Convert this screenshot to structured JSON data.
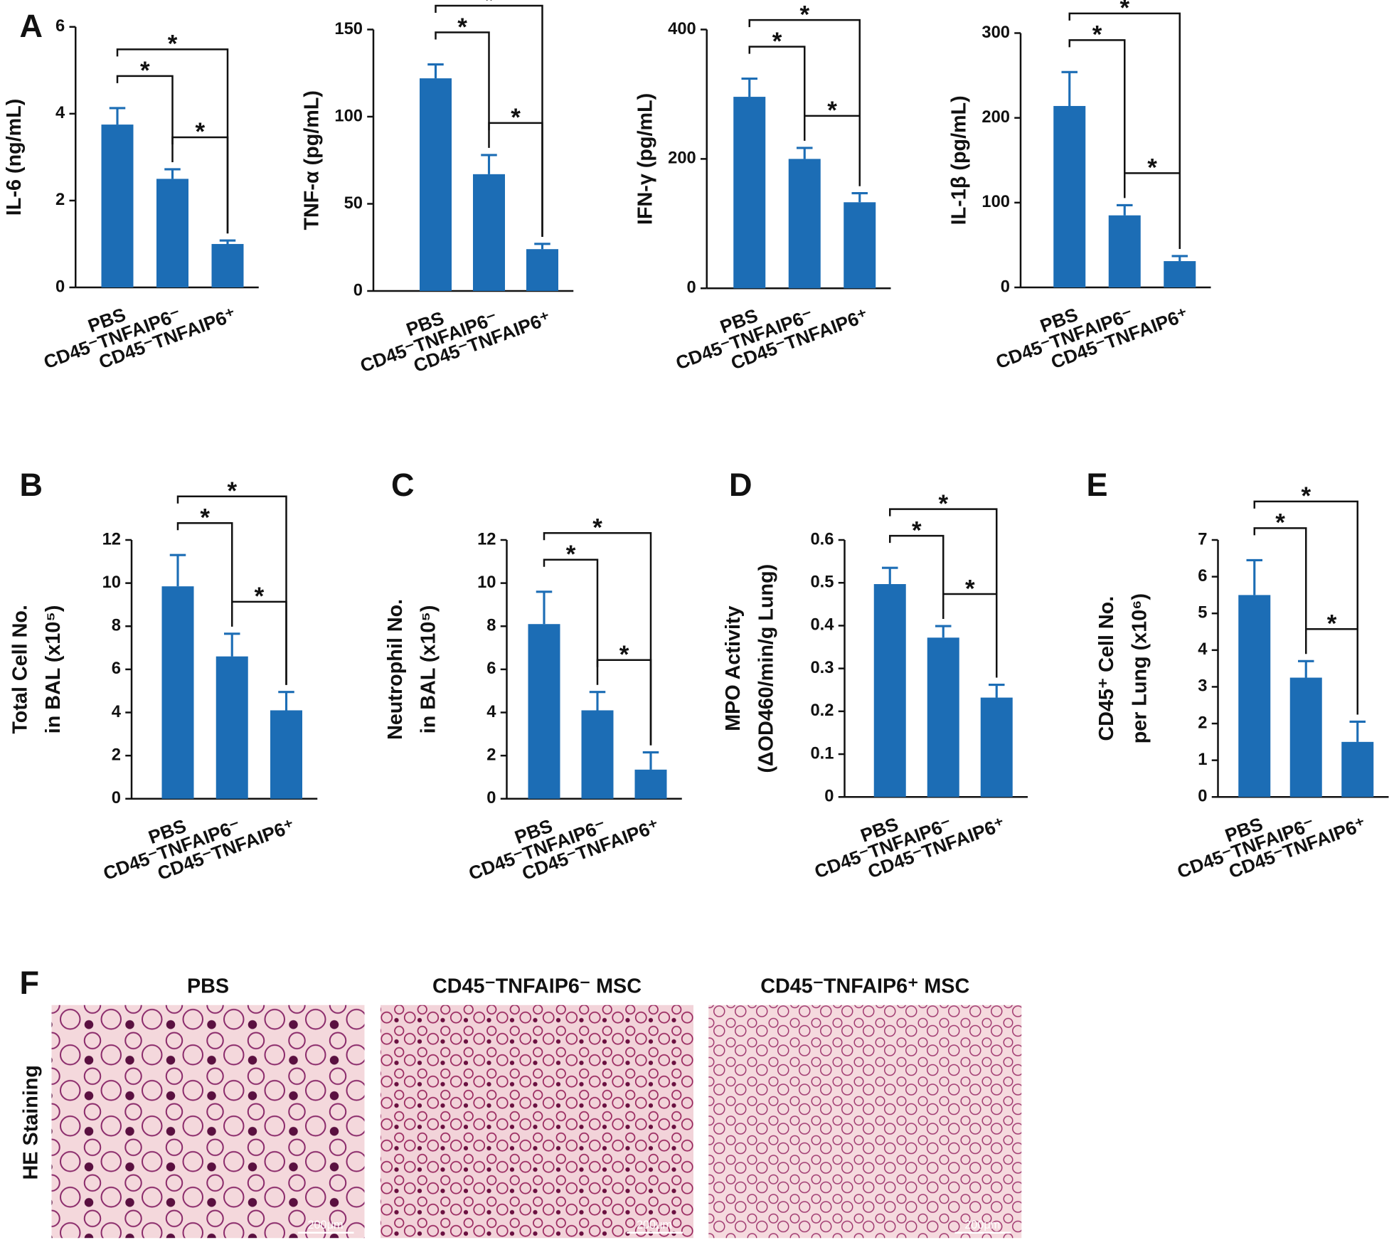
{
  "chart_data": [
    {
      "type": "bar",
      "panel": "A",
      "ylabel": [
        "IL-6 (ng/mL)"
      ],
      "categories": [
        "PBS",
        "CD45⁻TNFAIP6⁻",
        "CD45⁻TNFAIP6⁺"
      ],
      "values": [
        3.75,
        2.5,
        1.0
      ],
      "errors": [
        0.38,
        0.22,
        0.08
      ],
      "color": "#1c6db5",
      "ylim": [
        0,
        6
      ],
      "yticks": [
        0,
        2,
        4,
        6
      ],
      "brackets": [
        {
          "from": "PBS",
          "to": "CD45⁻TNFAIP6⁻",
          "label": "*"
        },
        {
          "from": "CD45⁻TNFAIP6⁻",
          "to": "CD45⁻TNFAIP6⁺",
          "label": "*"
        },
        {
          "from": "PBS",
          "to": "CD45⁻TNFAIP6⁺",
          "label": "*"
        }
      ]
    },
    {
      "type": "bar",
      "ylabel": [
        "TNF-α (pg/mL)"
      ],
      "categories": [
        "PBS",
        "CD45⁻TNFAIP6⁻",
        "CD45⁻TNFAIP6⁺"
      ],
      "values": [
        122,
        67,
        24
      ],
      "errors": [
        8,
        11,
        3
      ],
      "color": "#1c6db5",
      "ylim": [
        0,
        150
      ],
      "yticks": [
        0,
        50,
        100,
        150
      ],
      "brackets": [
        {
          "from": "PBS",
          "to": "CD45⁻TNFAIP6⁻",
          "label": "*"
        },
        {
          "from": "CD45⁻TNFAIP6⁻",
          "to": "CD45⁻TNFAIP6⁺",
          "label": "*"
        },
        {
          "from": "PBS",
          "to": "CD45⁻TNFAIP6⁺",
          "label": "*"
        }
      ]
    },
    {
      "type": "bar",
      "ylabel": [
        "IFN-γ (pg/mL)"
      ],
      "categories": [
        "PBS",
        "CD45⁻TNFAIP6⁻",
        "CD45⁻TNFAIP6⁺"
      ],
      "values": [
        296,
        200,
        133
      ],
      "errors": [
        28,
        17,
        14
      ],
      "color": "#1c6db5",
      "ylim": [
        0,
        400
      ],
      "yticks": [
        0,
        200,
        400
      ],
      "brackets": [
        {
          "from": "PBS",
          "to": "CD45⁻TNFAIP6⁻",
          "label": "*"
        },
        {
          "from": "CD45⁻TNFAIP6⁻",
          "to": "CD45⁻TNFAIP6⁺",
          "label": "*"
        },
        {
          "from": "PBS",
          "to": "CD45⁻TNFAIP6⁺",
          "label": "*"
        }
      ]
    },
    {
      "type": "bar",
      "ylabel": [
        "IL-1β (pg/mL)"
      ],
      "categories": [
        "PBS",
        "CD45⁻TNFAIP6⁻",
        "CD45⁻TNFAIP6⁺"
      ],
      "values": [
        214,
        85,
        31
      ],
      "errors": [
        40,
        12,
        6
      ],
      "color": "#1c6db5",
      "ylim": [
        0,
        300
      ],
      "yticks": [
        0,
        100,
        200,
        300
      ],
      "brackets": [
        {
          "from": "PBS",
          "to": "CD45⁻TNFAIP6⁻",
          "label": "*"
        },
        {
          "from": "CD45⁻TNFAIP6⁻",
          "to": "CD45⁻TNFAIP6⁺",
          "label": "*"
        },
        {
          "from": "PBS",
          "to": "CD45⁻TNFAIP6⁺",
          "label": "*"
        }
      ]
    },
    {
      "type": "bar",
      "panel": "B",
      "ylabel": [
        "Total Cell No.",
        "in BAL (x10⁵)"
      ],
      "categories": [
        "PBS",
        "CD45⁻TNFAIP6⁻",
        "CD45⁻TNFAIP6⁺"
      ],
      "values": [
        9.85,
        6.6,
        4.1
      ],
      "errors": [
        1.45,
        1.05,
        0.85
      ],
      "color": "#1c6db5",
      "ylim": [
        0,
        12
      ],
      "yticks": [
        0,
        2,
        4,
        6,
        8,
        10,
        12
      ],
      "brackets": [
        {
          "from": "PBS",
          "to": "CD45⁻TNFAIP6⁻",
          "label": "*"
        },
        {
          "from": "CD45⁻TNFAIP6⁻",
          "to": "CD45⁻TNFAIP6⁺",
          "label": "*"
        },
        {
          "from": "PBS",
          "to": "CD45⁻TNFAIP6⁺",
          "label": "*"
        }
      ]
    },
    {
      "type": "bar",
      "panel": "C",
      "ylabel": [
        "Neutrophil No.",
        "in BAL (x10⁵)"
      ],
      "categories": [
        "PBS",
        "CD45⁻TNFAIP6⁻",
        "CD45⁻TNFAIP6⁺"
      ],
      "values": [
        8.1,
        4.1,
        1.35
      ],
      "errors": [
        1.5,
        0.85,
        0.8
      ],
      "color": "#1c6db5",
      "ylim": [
        0,
        12
      ],
      "yticks": [
        0,
        2,
        4,
        6,
        8,
        10,
        12
      ],
      "brackets": [
        {
          "from": "PBS",
          "to": "CD45⁻TNFAIP6⁻",
          "label": "*"
        },
        {
          "from": "CD45⁻TNFAIP6⁻",
          "to": "CD45⁻TNFAIP6⁺",
          "label": "*"
        },
        {
          "from": "PBS",
          "to": "CD45⁻TNFAIP6⁺",
          "label": "*"
        }
      ]
    },
    {
      "type": "bar",
      "panel": "D",
      "ylabel": [
        "MPO Activity",
        "(ΔOD460/min/g Lung)"
      ],
      "categories": [
        "PBS",
        "CD45⁻TNFAIP6⁻",
        "CD45⁻TNFAIP6⁺"
      ],
      "values": [
        0.497,
        0.372,
        0.232
      ],
      "errors": [
        0.038,
        0.027,
        0.03
      ],
      "color": "#1c6db5",
      "ylim": [
        0,
        0.6
      ],
      "yticks": [
        0,
        0.1,
        0.2,
        0.3,
        0.4,
        0.5,
        0.6
      ],
      "brackets": [
        {
          "from": "PBS",
          "to": "CD45⁻TNFAIP6⁻",
          "label": "*"
        },
        {
          "from": "CD45⁻TNFAIP6⁻",
          "to": "CD45⁻TNFAIP6⁺",
          "label": "*"
        },
        {
          "from": "PBS",
          "to": "CD45⁻TNFAIP6⁺",
          "label": "*"
        }
      ]
    },
    {
      "type": "bar",
      "panel": "E",
      "ylabel": [
        "CD45⁺ Cell No.",
        "per Lung (x10⁶)"
      ],
      "categories": [
        "PBS",
        "CD45⁻TNFAIP6⁻",
        "CD45⁻TNFAIP6⁺"
      ],
      "values": [
        5.5,
        3.25,
        1.5
      ],
      "errors": [
        0.95,
        0.45,
        0.55
      ],
      "color": "#1c6db5",
      "ylim": [
        0,
        7
      ],
      "yticks": [
        0,
        1,
        2,
        3,
        4,
        5,
        6,
        7
      ],
      "brackets": [
        {
          "from": "PBS",
          "to": "CD45⁻TNFAIP6⁻",
          "label": "*"
        },
        {
          "from": "CD45⁻TNFAIP6⁻",
          "to": "CD45⁻TNFAIP6⁺",
          "label": "*"
        },
        {
          "from": "PBS",
          "to": "CD45⁻TNFAIP6⁺",
          "label": "*"
        }
      ]
    }
  ],
  "panel_f": {
    "label": "F",
    "side_label": "HE Staining",
    "images": [
      {
        "title": "PBS",
        "scale": "200μm"
      },
      {
        "title": "CD45⁻TNFAIP6⁻ MSC",
        "scale": "200μm"
      },
      {
        "title": "CD45⁻TNFAIP6⁺ MSC",
        "scale": "200μm"
      }
    ]
  }
}
